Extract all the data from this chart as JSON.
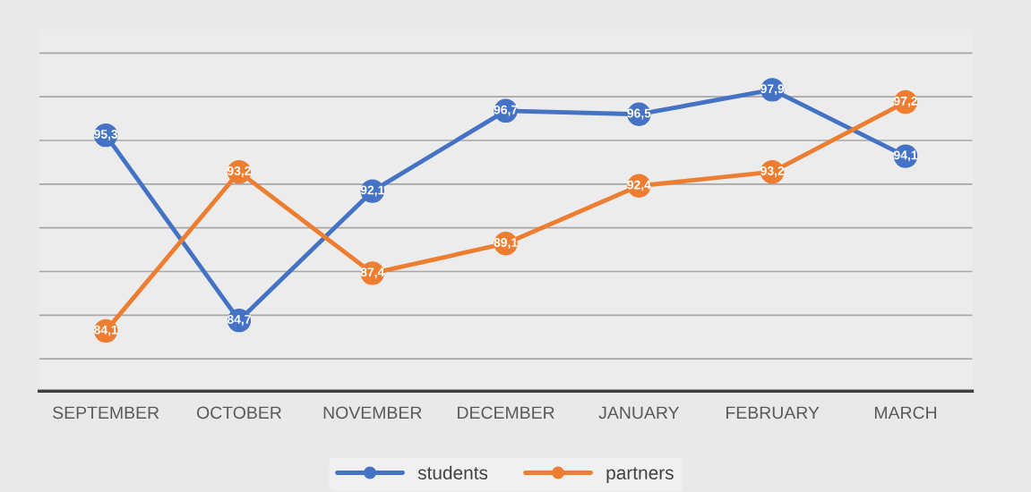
{
  "chart_data": {
    "type": "line",
    "categories": [
      "SEPTEMBER",
      "OCTOBER",
      "NOVEMBER",
      "DECEMBER",
      "JANUARY",
      "FEBRUARY",
      "MARCH"
    ],
    "series": [
      {
        "name": "students",
        "color": "#4472c4",
        "values": [
          95.3,
          84.7,
          92.1,
          96.7,
          96.5,
          97.9,
          94.1
        ],
        "value_labels": [
          "95,3",
          "84,7",
          "92,1",
          "96,7",
          "96,5",
          "97,9",
          "94,1"
        ]
      },
      {
        "name": "partners",
        "color": "#ed7d31",
        "values": [
          84.1,
          93.2,
          87.4,
          89.1,
          92.4,
          93.2,
          97.2
        ],
        "value_labels": [
          "84,1",
          "93,2",
          "87,4",
          "89,1",
          "92,4",
          "93,2",
          "97,2"
        ]
      }
    ],
    "tick_labels": "x",
    "grid": "y",
    "legend": "bottom",
    "marker": "circle",
    "line_style": "solid"
  }
}
